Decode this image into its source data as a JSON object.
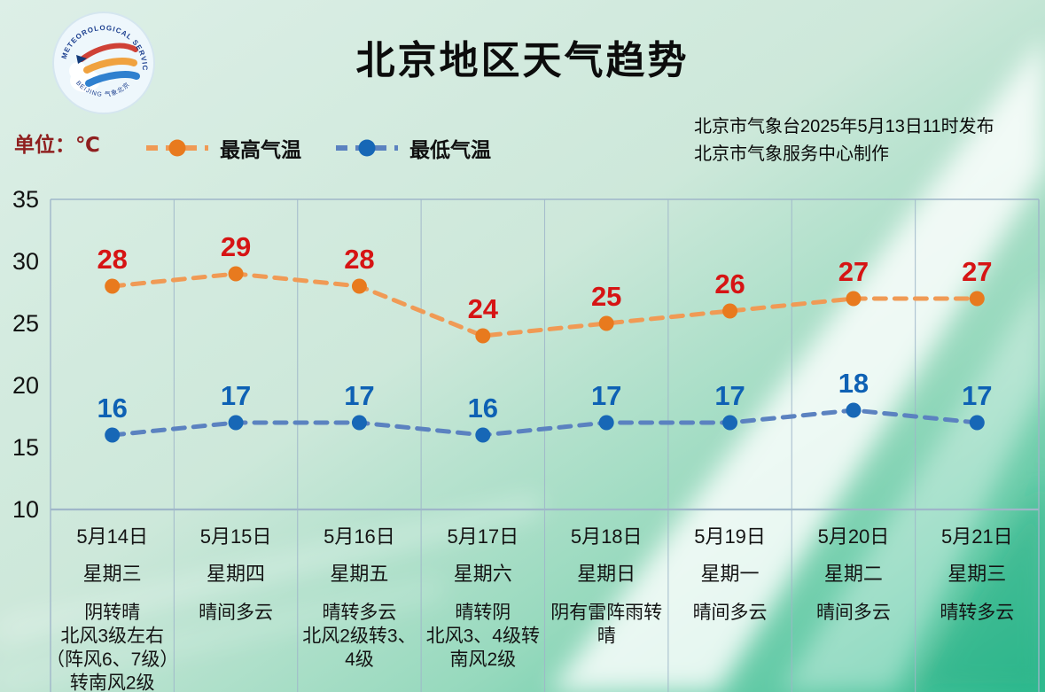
{
  "header": {
    "title": "北京地区天气趋势",
    "unit_label": "单位：℃",
    "issued_line1": "北京市气象台2025年5月13日11时发布",
    "issued_line2": "北京市气象服务中心制作",
    "logo_arc_top": "METEOROLOGICAL SERVICE",
    "logo_arc_bottom": "BEIJING 气象北京"
  },
  "colors": {
    "high_line": "#f09a55",
    "high_dot": "#e87a1e",
    "high_label": "#d61414",
    "low_line": "#5b82c0",
    "low_dot": "#1767b6",
    "low_label": "#0e61b4",
    "unit_text": "#8f1f1f",
    "grid_line": "#9fb6c9",
    "bg_light": "#ddefe7",
    "bg_deep": "#2fbc90"
  },
  "chart_data": {
    "type": "line",
    "categories": [
      "5月14日",
      "5月15日",
      "5月16日",
      "5月17日",
      "5月18日",
      "5月19日",
      "5月20日",
      "5月21日"
    ],
    "series": [
      {
        "name": "最高气温",
        "values": [
          28,
          29,
          28,
          24,
          25,
          26,
          27,
          27
        ],
        "line_color": "#f09a55",
        "dot_color": "#e87a1e",
        "label_color": "#d61414"
      },
      {
        "name": "最低气温",
        "values": [
          16,
          17,
          17,
          16,
          17,
          17,
          18,
          17
        ],
        "line_color": "#5b82c0",
        "dot_color": "#1767b6",
        "label_color": "#0e61b4"
      }
    ],
    "title": "北京地区天气趋势",
    "xlabel": "",
    "ylabel": "℃",
    "ylim": [
      10,
      35
    ],
    "yticks": [
      35,
      30,
      25,
      20,
      15,
      10
    ],
    "grid": "vertical-only",
    "legend_position": "top-left",
    "line_style": "dashed"
  },
  "days": [
    {
      "date": "5月14日",
      "weekday": "星期三",
      "weather_lines": [
        "阴转晴",
        "北风3级左右",
        "（阵风6、7级）",
        "转南风2级"
      ]
    },
    {
      "date": "5月15日",
      "weekday": "星期四",
      "weather_lines": [
        "晴间多云"
      ]
    },
    {
      "date": "5月16日",
      "weekday": "星期五",
      "weather_lines": [
        "晴转多云",
        "北风2级转3、",
        "4级"
      ]
    },
    {
      "date": "5月17日",
      "weekday": "星期六",
      "weather_lines": [
        "晴转阴",
        "北风3、4级转",
        "南风2级"
      ]
    },
    {
      "date": "5月18日",
      "weekday": "星期日",
      "weather_lines": [
        "阴有雷阵雨转",
        "晴"
      ]
    },
    {
      "date": "5月19日",
      "weekday": "星期一",
      "weather_lines": [
        "晴间多云"
      ]
    },
    {
      "date": "5月20日",
      "weekday": "星期二",
      "weather_lines": [
        "晴间多云"
      ]
    },
    {
      "date": "5月21日",
      "weekday": "星期三",
      "weather_lines": [
        "晴转多云"
      ]
    }
  ]
}
